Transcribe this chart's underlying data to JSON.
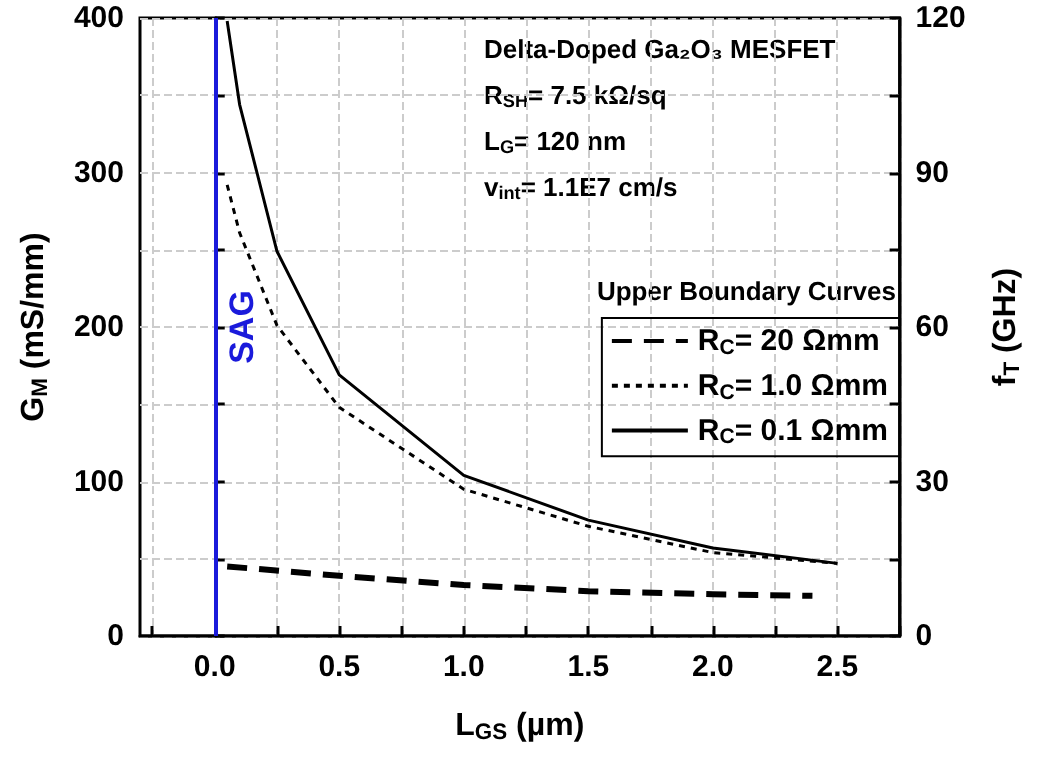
{
  "chart_data": {
    "type": "line",
    "xlabel": "L$_{GS}$ (µm)",
    "ylabel": "G$_{M}$ (mS/mm)",
    "y2label": "f$_{T}$ (GHz)",
    "legend_title": "Upper Boundary Curves",
    "annotations": [
      "Delta-Doped Ga₂O₃ MESFET",
      "R$_{SH}$= 7.5 kΩ/sq",
      "L$_{G}$= 120 nm",
      "v$_{int}$= 1.1E7 cm/s"
    ],
    "series": [
      {
        "name": "R$_{C}$= 20 Ωmm",
        "color": "#000000",
        "line_style": "dashed",
        "x": [
          0.05,
          0.5,
          1.0,
          1.5,
          2.0,
          2.4
        ],
        "values": [
          45,
          39,
          33,
          29,
          27,
          26
        ]
      },
      {
        "name": "R$_{C}$= 1.0 Ωmm",
        "color": "#000000",
        "line_style": "dotted",
        "x": [
          0.05,
          0.1,
          0.25,
          0.5,
          1.0,
          1.5,
          2.0,
          2.5
        ],
        "values": [
          292,
          261,
          201,
          148,
          95,
          71,
          54,
          47
        ]
      },
      {
        "name": "R$_{C}$= 0.1 Ωmm",
        "color": "#000000",
        "line_style": "solid",
        "x": [
          0.05,
          0.1,
          0.25,
          0.5,
          1.0,
          1.5,
          2.0,
          2.5
        ],
        "values": [
          398,
          344,
          249,
          169,
          104,
          75,
          57,
          47
        ]
      }
    ],
    "ref_lines": [
      {
        "axis": "x",
        "value": 0,
        "label": "SAG",
        "color": "#1a1adb"
      }
    ],
    "xlim": [
      -0.3,
      2.75
    ],
    "ylim": [
      0,
      400
    ],
    "y2lim": [
      0,
      120
    ],
    "xticks": [
      {
        "value": -0.25,
        "label": null
      },
      {
        "value": 0,
        "label": "0.0"
      },
      {
        "value": 0.25,
        "label": null
      },
      0.5,
      {
        "value": 0.75,
        "label": null
      },
      {
        "value": 1,
        "label": "1.0"
      },
      {
        "value": 1.25,
        "label": null
      },
      1.5,
      {
        "value": 1.75,
        "label": null
      },
      {
        "value": 2,
        "label": "2.0"
      },
      {
        "value": 2.25,
        "label": null
      },
      2.5,
      {
        "value": 2.75,
        "label": null
      }
    ],
    "yticks": [
      0,
      {
        "value": 50,
        "label": null
      },
      100,
      {
        "value": 150,
        "label": null
      },
      200,
      {
        "value": 250,
        "label": null
      },
      300,
      {
        "value": 350,
        "label": null
      },
      400
    ],
    "y2ticks": [
      0,
      {
        "value": 15,
        "label": null
      },
      30,
      {
        "value": 45,
        "label": null
      },
      60,
      {
        "value": 75,
        "label": null
      },
      90,
      {
        "value": 105,
        "label": null
      },
      120
    ],
    "grid": true,
    "legend": "right",
    "marker": "none"
  }
}
